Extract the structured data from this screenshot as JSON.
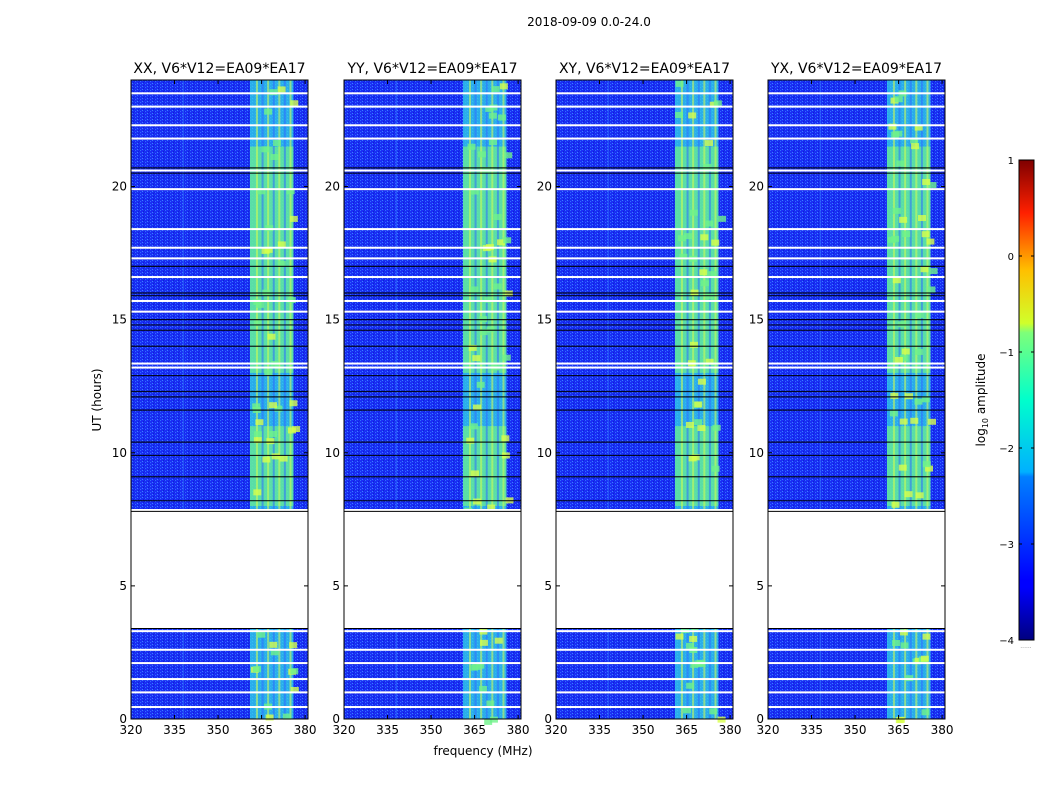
{
  "figure": {
    "suptitle": "2018-09-09 0.0-24.0",
    "xlabel": "frequency (MHz)",
    "ylabel": "UT (hours)"
  },
  "colors": {
    "background": "#ffffff",
    "noise_base": "#1a2ff5",
    "noise_light": "#2e6cff",
    "band_cyan": "#31d8e8",
    "band_green": "#6ff28a",
    "band_yellow": "#d8ff4a",
    "flag": "#ffffff",
    "dark_line": "#000000"
  },
  "chart_data": {
    "type": "heatmap",
    "panels": [
      {
        "title": "XX, V6*V12=EA09*EA17"
      },
      {
        "title": "YY, V6*V12=EA09*EA17"
      },
      {
        "title": "XY, V6*V12=EA09*EA17"
      },
      {
        "title": "YX, V6*V12=EA09*EA17"
      }
    ],
    "xlim": [
      320,
      381
    ],
    "ylim": [
      0,
      24
    ],
    "xticks": [
      320,
      335,
      350,
      365,
      380
    ],
    "xtick_labels": [
      "320",
      "335",
      "350",
      "365",
      "380"
    ],
    "yticks": [
      0,
      5,
      10,
      15,
      20
    ],
    "ytick_labels": [
      "0",
      "5",
      "10",
      "15",
      "20"
    ],
    "rfi_band_mhz": [
      361,
      376
    ],
    "gap_hours": [
      3.4,
      7.8
    ],
    "bright_hours": [
      [
        13.0,
        21.5
      ],
      [
        8.0,
        11.0
      ]
    ],
    "flagged_hours": [
      0.45,
      1.0,
      1.5,
      2.1,
      2.6,
      3.3,
      7.85,
      13.2,
      13.35,
      15.3,
      15.7,
      16.6,
      17.3,
      17.7,
      18.4,
      19.9,
      20.6,
      21.8,
      22.3,
      23.0,
      23.5
    ],
    "dark_hours": [
      8.2,
      9.1,
      9.9,
      10.4,
      11.6,
      12.1,
      12.3,
      12.9,
      14.0,
      14.6,
      14.8,
      15.0,
      15.9,
      16.0,
      17.0,
      20.5,
      20.7
    ],
    "colorbar": {
      "label": "log",
      "label_sub": "10",
      "label_suffix": " amplitude",
      "vmin": -4,
      "vmax": 1,
      "ticks": [
        1,
        0,
        -1,
        -2,
        -3,
        -4
      ],
      "tick_labels": [
        "1",
        "0",
        "−1",
        "−2",
        "−3",
        "−4"
      ],
      "colormap": "jet",
      "footnote": "......"
    }
  }
}
